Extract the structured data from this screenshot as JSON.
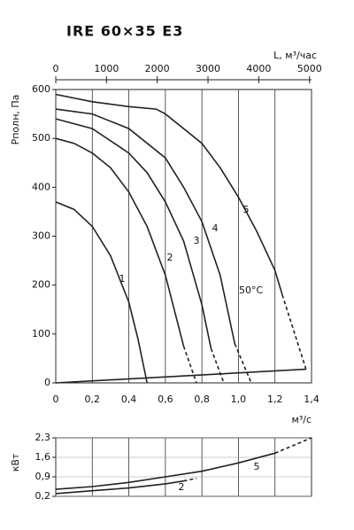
{
  "chart_data": [
    {
      "type": "line",
      "title": "IRE 60×35 E3",
      "xlabel": "м³/с",
      "ylabel": "Pполн, Па",
      "x2label": "L, м³/час",
      "xlim": [
        0,
        1.4
      ],
      "ylim": [
        0,
        600
      ],
      "x2lim": [
        0,
        5040
      ],
      "xticks": [
        0,
        {
          "value": 0.2,
          "label": "0,2"
        },
        {
          "value": 0.4,
          "label": "0,4"
        },
        {
          "value": 0.6,
          "label": "0,6"
        },
        {
          "value": 0.8,
          "label": "0,8"
        },
        {
          "value": 1.0,
          "label": "1,0"
        },
        {
          "value": 1.2,
          "label": "1,2"
        },
        {
          "value": 1.4,
          "label": "1,4"
        }
      ],
      "yticks": [
        0,
        100,
        200,
        300,
        400,
        500,
        600
      ],
      "x2ticks": [
        0,
        1000,
        2000,
        3000,
        4000,
        5000
      ],
      "grid": true,
      "color": "#222222",
      "annotations": [
        "50°C"
      ],
      "series": [
        {
          "name": "1",
          "x": [
            0,
            0.1,
            0.2,
            0.3,
            0.4,
            0.45,
            0.5
          ],
          "values": [
            370,
            355,
            320,
            260,
            165,
            90,
            0
          ]
        },
        {
          "name": "2",
          "x": [
            0,
            0.1,
            0.2,
            0.3,
            0.4,
            0.5,
            0.6,
            0.7,
            0.77
          ],
          "values": [
            500,
            490,
            470,
            440,
            390,
            320,
            220,
            75,
            0
          ],
          "dashed_from": 7
        },
        {
          "name": "3",
          "x": [
            0,
            0.2,
            0.4,
            0.5,
            0.6,
            0.7,
            0.8,
            0.85,
            0.92
          ],
          "values": [
            540,
            520,
            470,
            430,
            370,
            290,
            160,
            70,
            0
          ],
          "dashed_from": 7
        },
        {
          "name": "4",
          "x": [
            0,
            0.2,
            0.4,
            0.6,
            0.7,
            0.8,
            0.9,
            0.98,
            1.07
          ],
          "values": [
            560,
            550,
            520,
            460,
            400,
            330,
            220,
            80,
            0
          ],
          "dashed_from": 7
        },
        {
          "name": "5",
          "x": [
            0,
            0.2,
            0.4,
            0.55,
            0.6,
            0.7,
            0.8,
            0.9,
            1.0,
            1.1,
            1.2,
            1.24,
            1.37
          ],
          "values": [
            590,
            575,
            565,
            560,
            550,
            520,
            490,
            440,
            380,
            310,
            230,
            180,
            28
          ],
          "dashed_from": 11
        }
      ],
      "system_curve": {
        "x": [
          0,
          1.37
        ],
        "values": [
          0,
          28
        ]
      }
    },
    {
      "type": "line",
      "ylabel": "кВт",
      "xlim": [
        0,
        1.4
      ],
      "ylim": [
        0.2,
        2.3
      ],
      "yticks": [
        {
          "value": 0.2,
          "label": "0,2"
        },
        {
          "value": 0.9,
          "label": "0,9"
        },
        {
          "value": 1.6,
          "label": "1,6"
        },
        {
          "value": 2.3,
          "label": "2,3"
        }
      ],
      "grid": true,
      "color": "#222222",
      "series": [
        {
          "name": "2",
          "x": [
            0,
            0.2,
            0.4,
            0.6,
            0.7,
            0.77
          ],
          "values": [
            0.3,
            0.4,
            0.5,
            0.65,
            0.75,
            0.85
          ],
          "dashed_from": 4
        },
        {
          "name": "5",
          "x": [
            0,
            0.2,
            0.4,
            0.6,
            0.8,
            1.0,
            1.2,
            1.4
          ],
          "values": [
            0.45,
            0.55,
            0.7,
            0.9,
            1.1,
            1.4,
            1.75,
            2.3
          ],
          "dashed_from": 6
        }
      ]
    }
  ]
}
